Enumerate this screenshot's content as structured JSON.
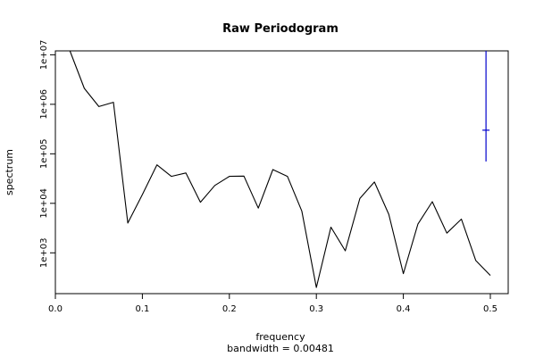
{
  "chart_data": {
    "type": "line",
    "title": "Raw Periodogram",
    "xlabel": "frequency",
    "xlabel_sub": "bandwidth = 0.00481",
    "ylabel": "spectrum",
    "y_scale": "log",
    "xlim": [
      0.0,
      0.5
    ],
    "ylim": [
      150,
      12000000
    ],
    "x_ticks": [
      {
        "value": 0.0,
        "label": "0.0"
      },
      {
        "value": 0.1,
        "label": "0.1"
      },
      {
        "value": 0.2,
        "label": "0.2"
      },
      {
        "value": 0.3,
        "label": "0.3"
      },
      {
        "value": 0.4,
        "label": "0.4"
      },
      {
        "value": 0.5,
        "label": "0.5"
      }
    ],
    "y_ticks": [
      {
        "value": 1000,
        "label": "1e+03"
      },
      {
        "value": 10000,
        "label": "1e+04"
      },
      {
        "value": 100000,
        "label": "1e+05"
      },
      {
        "value": 1000000,
        "label": "1e+06"
      },
      {
        "value": 10000000,
        "label": "1e+07"
      }
    ],
    "grid": false,
    "series": [
      {
        "color": "#000000",
        "x": [
          0.0167,
          0.0333,
          0.05,
          0.0667,
          0.0833,
          0.1,
          0.1167,
          0.1333,
          0.15,
          0.1667,
          0.1833,
          0.2,
          0.2167,
          0.2333,
          0.25,
          0.2667,
          0.2833,
          0.3,
          0.3167,
          0.3333,
          0.35,
          0.3667,
          0.3833,
          0.4,
          0.4167,
          0.4333,
          0.45,
          0.4667,
          0.4833,
          0.5
        ],
        "y": [
          12000000,
          2100000,
          900000,
          1100000,
          4000,
          15000,
          60000,
          35000,
          41000,
          10500,
          23000,
          35000,
          35500,
          8000,
          48000,
          35000,
          7000,
          200,
          3300,
          1100,
          12500,
          27000,
          6000,
          380,
          3800,
          10800,
          2500,
          4800,
          700,
          350
        ]
      }
    ],
    "ci_bar": {
      "color": "#0000cc",
      "x": 0.495,
      "low": 70000,
      "mid": 300000,
      "high": 12000000
    }
  }
}
